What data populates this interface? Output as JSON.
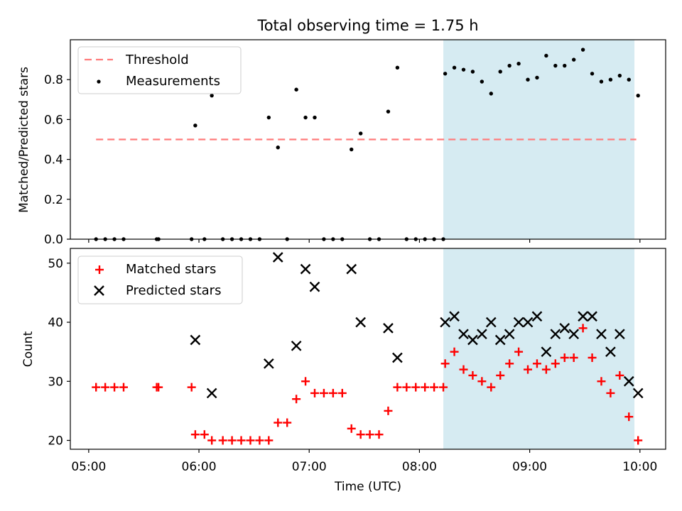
{
  "chart_data": {
    "title": "Total observing time = 1.75 h",
    "xlabel": "Time (UTC)",
    "x_ticks": [
      "05:00",
      "06:00",
      "07:00",
      "08:00",
      "09:00",
      "10:00"
    ],
    "x_range": [
      "04:50",
      "10:14"
    ],
    "shaded_interval": [
      "08:13",
      "09:57"
    ],
    "panels": [
      {
        "type": "scatter",
        "ylabel": "Matched/Predicted stars",
        "ylim": [
          0,
          1.0
        ],
        "y_ticks": [
          "0.0",
          "0.2",
          "0.4",
          "0.6",
          "0.8"
        ],
        "threshold": {
          "value": 0.5,
          "x_start": "05:04",
          "x_end": "09:58",
          "color": "#ff7b7b"
        },
        "legend": {
          "position": "top-left",
          "entries": [
            "Threshold",
            "Measurements"
          ]
        },
        "series": [
          {
            "name": "Measurements",
            "color": "#000000",
            "points": [
              [
                "05:04",
                0
              ],
              [
                "05:09",
                0
              ],
              [
                "05:14",
                0
              ],
              [
                "05:19",
                0
              ],
              [
                "05:37",
                0
              ],
              [
                "05:38",
                0
              ],
              [
                "05:56",
                0
              ],
              [
                "05:58",
                0.57
              ],
              [
                "06:03",
                0
              ],
              [
                "06:07",
                0.72
              ],
              [
                "06:13",
                0
              ],
              [
                "06:18",
                0
              ],
              [
                "06:23",
                0
              ],
              [
                "06:28",
                0
              ],
              [
                "06:33",
                0
              ],
              [
                "06:38",
                0.61
              ],
              [
                "06:43",
                0.46
              ],
              [
                "06:48",
                0
              ],
              [
                "06:53",
                0.75
              ],
              [
                "06:58",
                0.61
              ],
              [
                "07:03",
                0.61
              ],
              [
                "07:08",
                0
              ],
              [
                "07:13",
                0
              ],
              [
                "07:18",
                0
              ],
              [
                "07:23",
                0.45
              ],
              [
                "07:28",
                0.53
              ],
              [
                "07:33",
                0
              ],
              [
                "07:38",
                0
              ],
              [
                "07:43",
                0.64
              ],
              [
                "07:48",
                0.86
              ],
              [
                "07:53",
                0
              ],
              [
                "07:58",
                0
              ],
              [
                "08:03",
                0
              ],
              [
                "08:08",
                0
              ],
              [
                "08:13",
                0
              ],
              [
                "08:14",
                0.83
              ],
              [
                "08:19",
                0.86
              ],
              [
                "08:24",
                0.85
              ],
              [
                "08:29",
                0.84
              ],
              [
                "08:34",
                0.79
              ],
              [
                "08:39",
                0.73
              ],
              [
                "08:44",
                0.84
              ],
              [
                "08:49",
                0.87
              ],
              [
                "08:54",
                0.88
              ],
              [
                "08:59",
                0.8
              ],
              [
                "09:04",
                0.81
              ],
              [
                "09:09",
                0.92
              ],
              [
                "09:14",
                0.87
              ],
              [
                "09:19",
                0.87
              ],
              [
                "09:24",
                0.9
              ],
              [
                "09:29",
                0.95
              ],
              [
                "09:34",
                0.83
              ],
              [
                "09:39",
                0.79
              ],
              [
                "09:44",
                0.8
              ],
              [
                "09:49",
                0.82
              ],
              [
                "09:54",
                0.8
              ],
              [
                "09:59",
                0.72
              ]
            ]
          }
        ]
      },
      {
        "type": "scatter",
        "ylabel": "Count",
        "ylim": [
          18.5,
          52.5
        ],
        "y_ticks": [
          "20",
          "30",
          "40",
          "50"
        ],
        "legend": {
          "position": "top-left",
          "entries": [
            "Matched stars",
            "Predicted stars"
          ]
        },
        "series": [
          {
            "name": "Matched stars",
            "marker": "plus",
            "color": "#ff0000",
            "points": [
              [
                "05:04",
                29
              ],
              [
                "05:09",
                29
              ],
              [
                "05:14",
                29
              ],
              [
                "05:19",
                29
              ],
              [
                "05:37",
                29
              ],
              [
                "05:38",
                29
              ],
              [
                "05:56",
                29
              ],
              [
                "05:58",
                21
              ],
              [
                "06:03",
                21
              ],
              [
                "06:07",
                20
              ],
              [
                "06:13",
                20
              ],
              [
                "06:18",
                20
              ],
              [
                "06:23",
                20
              ],
              [
                "06:28",
                20
              ],
              [
                "06:33",
                20
              ],
              [
                "06:38",
                20
              ],
              [
                "06:43",
                23
              ],
              [
                "06:48",
                23
              ],
              [
                "06:53",
                27
              ],
              [
                "06:58",
                30
              ],
              [
                "07:03",
                28
              ],
              [
                "07:08",
                28
              ],
              [
                "07:13",
                28
              ],
              [
                "07:18",
                28
              ],
              [
                "07:23",
                22
              ],
              [
                "07:28",
                21
              ],
              [
                "07:33",
                21
              ],
              [
                "07:38",
                21
              ],
              [
                "07:43",
                25
              ],
              [
                "07:48",
                29
              ],
              [
                "07:53",
                29
              ],
              [
                "07:58",
                29
              ],
              [
                "08:03",
                29
              ],
              [
                "08:08",
                29
              ],
              [
                "08:13",
                29
              ],
              [
                "08:14",
                33
              ],
              [
                "08:19",
                35
              ],
              [
                "08:24",
                32
              ],
              [
                "08:29",
                31
              ],
              [
                "08:34",
                30
              ],
              [
                "08:39",
                29
              ],
              [
                "08:44",
                31
              ],
              [
                "08:49",
                33
              ],
              [
                "08:54",
                35
              ],
              [
                "08:59",
                32
              ],
              [
                "09:04",
                33
              ],
              [
                "09:09",
                32
              ],
              [
                "09:14",
                33
              ],
              [
                "09:19",
                34
              ],
              [
                "09:24",
                34
              ],
              [
                "09:29",
                39
              ],
              [
                "09:34",
                34
              ],
              [
                "09:39",
                30
              ],
              [
                "09:44",
                28
              ],
              [
                "09:49",
                31
              ],
              [
                "09:54",
                24
              ],
              [
                "09:59",
                20
              ]
            ]
          },
          {
            "name": "Predicted stars",
            "marker": "x",
            "color": "#000000",
            "points": [
              [
                "05:58",
                37
              ],
              [
                "06:07",
                28
              ],
              [
                "06:38",
                33
              ],
              [
                "06:43",
                51
              ],
              [
                "06:53",
                36
              ],
              [
                "06:58",
                49
              ],
              [
                "07:03",
                46
              ],
              [
                "07:23",
                49
              ],
              [
                "07:28",
                40
              ],
              [
                "07:43",
                39
              ],
              [
                "07:48",
                34
              ],
              [
                "08:14",
                40
              ],
              [
                "08:19",
                41
              ],
              [
                "08:24",
                38
              ],
              [
                "08:29",
                37
              ],
              [
                "08:34",
                38
              ],
              [
                "08:39",
                40
              ],
              [
                "08:44",
                37
              ],
              [
                "08:49",
                38
              ],
              [
                "08:54",
                40
              ],
              [
                "08:59",
                40
              ],
              [
                "09:04",
                41
              ],
              [
                "09:09",
                35
              ],
              [
                "09:14",
                38
              ],
              [
                "09:19",
                39
              ],
              [
                "09:24",
                38
              ],
              [
                "09:29",
                41
              ],
              [
                "09:34",
                41
              ],
              [
                "09:39",
                38
              ],
              [
                "09:44",
                35
              ],
              [
                "09:49",
                38
              ],
              [
                "09:54",
                30
              ],
              [
                "09:59",
                28
              ]
            ]
          }
        ]
      }
    ]
  }
}
